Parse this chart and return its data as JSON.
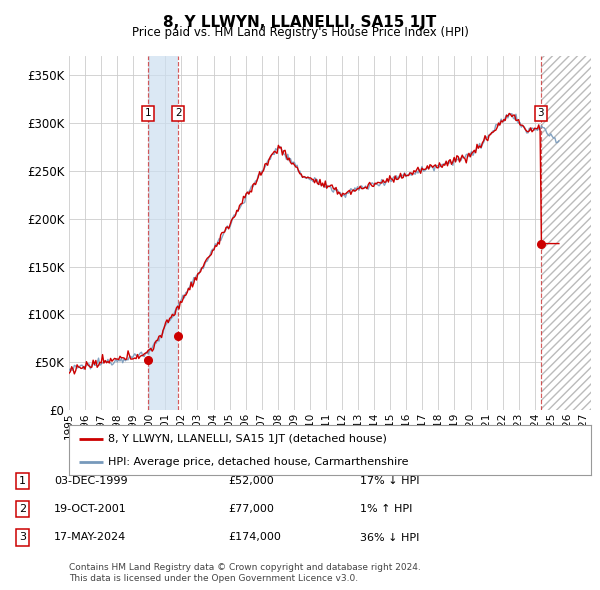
{
  "title": "8, Y LLWYN, LLANELLI, SA15 1JT",
  "subtitle": "Price paid vs. HM Land Registry's House Price Index (HPI)",
  "ylabel_ticks": [
    "£0",
    "£50K",
    "£100K",
    "£150K",
    "£200K",
    "£250K",
    "£300K",
    "£350K"
  ],
  "ytick_values": [
    0,
    50000,
    100000,
    150000,
    200000,
    250000,
    300000,
    350000
  ],
  "ylim": [
    0,
    370000
  ],
  "xlim_start": 1995.0,
  "xlim_end": 2027.5,
  "sale_dates": [
    1999.92,
    2001.8,
    2024.38
  ],
  "sale_prices": [
    52000,
    77000,
    174000
  ],
  "sale_labels": [
    "1",
    "2",
    "3"
  ],
  "span1_x0": 1999.92,
  "span1_x1": 2001.8,
  "span2_x0": 2024.38,
  "span2_x1": 2027.5,
  "legend_line1": "8, Y LLWYN, LLANELLI, SA15 1JT (detached house)",
  "legend_line2": "HPI: Average price, detached house, Carmarthenshire",
  "table_data": [
    [
      "1",
      "03-DEC-1999",
      "£52,000",
      "17% ↓ HPI"
    ],
    [
      "2",
      "19-OCT-2001",
      "£77,000",
      "1% ↑ HPI"
    ],
    [
      "3",
      "17-MAY-2024",
      "£174,000",
      "36% ↓ HPI"
    ]
  ],
  "footnote1": "Contains HM Land Registry data © Crown copyright and database right 2024.",
  "footnote2": "This data is licensed under the Open Government Licence v3.0.",
  "line_color_red": "#cc0000",
  "line_color_blue": "#7799bb",
  "background_color": "#ffffff",
  "grid_color": "#cccccc",
  "span_fill_color": "#ccdff0",
  "xtick_years": [
    1995,
    1996,
    1997,
    1998,
    1999,
    2000,
    2001,
    2002,
    2003,
    2004,
    2005,
    2006,
    2007,
    2008,
    2009,
    2010,
    2011,
    2012,
    2013,
    2014,
    2015,
    2016,
    2017,
    2018,
    2019,
    2020,
    2021,
    2022,
    2023,
    2024,
    2025,
    2026,
    2027
  ]
}
